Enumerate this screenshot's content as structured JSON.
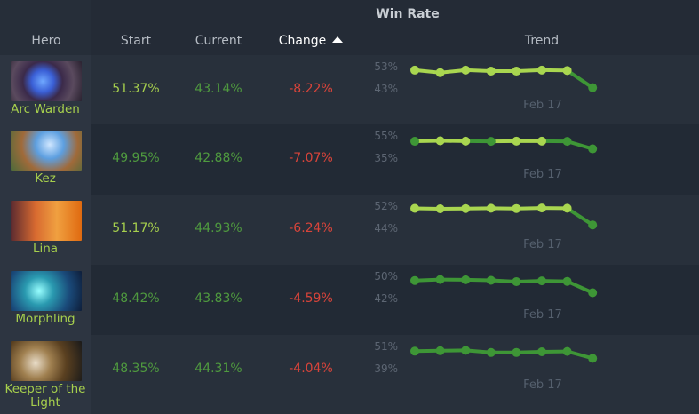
{
  "header": {
    "group_title": "Win Rate",
    "columns": {
      "hero": "Hero",
      "start": "Start",
      "current": "Current",
      "change": "Change",
      "trend": "Trend"
    },
    "sorted_by": "change",
    "sort_direction": "ascending"
  },
  "colors": {
    "high": "#a6cf4d",
    "low": "#4f9a3f",
    "negative": "#d9443a",
    "trend_high": "#a9d650",
    "trend_low": "#3e9636"
  },
  "trend_x_label": "Feb 17",
  "heroes": [
    {
      "name": "Arc Warden",
      "start": "51.37%",
      "current": "43.14%",
      "change": "-8.22%",
      "axis_top": "53%",
      "axis_bottom": "43%",
      "trend": [
        51.37,
        50.2,
        51.4,
        50.9,
        50.9,
        51.4,
        51.2,
        43.14
      ]
    },
    {
      "name": "Kez",
      "start": "49.95%",
      "current": "42.88%",
      "change": "-7.07%",
      "axis_top": "55%",
      "axis_bottom": "35%",
      "trend": [
        49.95,
        50.4,
        50.1,
        49.9,
        50.1,
        50.1,
        49.9,
        42.88
      ]
    },
    {
      "name": "Lina",
      "start": "51.17%",
      "current": "44.93%",
      "change": "-6.24%",
      "axis_top": "52%",
      "axis_bottom": "44%",
      "trend": [
        51.17,
        51.0,
        51.1,
        51.2,
        51.1,
        51.3,
        51.2,
        44.93
      ]
    },
    {
      "name": "Morphling",
      "start": "48.42%",
      "current": "43.83%",
      "change": "-4.59%",
      "axis_top": "50%",
      "axis_bottom": "42%",
      "trend": [
        48.42,
        48.8,
        48.7,
        48.5,
        48.0,
        48.3,
        48.1,
        43.83
      ]
    },
    {
      "name": "Keeper of the Light",
      "start": "48.35%",
      "current": "44.31%",
      "change": "-4.04%",
      "axis_top": "51%",
      "axis_bottom": "39%",
      "trend": [
        48.35,
        48.6,
        48.8,
        47.6,
        47.6,
        48.0,
        48.2,
        44.31
      ]
    }
  ]
}
